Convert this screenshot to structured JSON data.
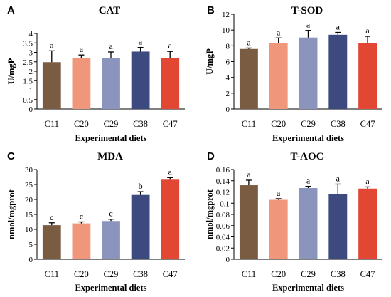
{
  "colors": [
    "#7a5c42",
    "#f0977b",
    "#8b94bc",
    "#3c4a80",
    "#e24734"
  ],
  "chart_data": [
    {
      "type": "bar",
      "panel": "A",
      "title": "CAT",
      "ylabel": "U/mgP",
      "xlabel": "Experimental diets",
      "categories": [
        "C11",
        "C20",
        "C29",
        "C38",
        "C47"
      ],
      "values": [
        2.48,
        2.7,
        2.7,
        3.04,
        2.7
      ],
      "errors": [
        0.6,
        0.16,
        0.32,
        0.22,
        0.35
      ],
      "significance": [
        "a",
        "a",
        "a",
        "a",
        "a"
      ],
      "ylim": [
        0,
        4
      ],
      "yticks": [
        "0",
        "0.5",
        "1",
        "1.5",
        "2",
        "2.5",
        "3",
        "3.5",
        "4"
      ]
    },
    {
      "type": "bar",
      "panel": "B",
      "title": "T-SOD",
      "ylabel": "U/mgP",
      "xlabel": "Experimental diets",
      "categories": [
        "C11",
        "C20",
        "C29",
        "C38",
        "C47"
      ],
      "values": [
        7.6,
        8.35,
        9.05,
        9.4,
        8.3
      ],
      "errors": [
        0.12,
        0.65,
        0.9,
        0.3,
        0.9
      ],
      "significance": [
        "a",
        "a",
        "a",
        "a",
        "a"
      ],
      "ylim": [
        0,
        12
      ],
      "yticks": [
        "0",
        "2",
        "4",
        "6",
        "8",
        "10",
        "12"
      ]
    },
    {
      "type": "bar",
      "panel": "C",
      "title": "MDA",
      "ylabel": "nmol/mgprot",
      "xlabel": "Experimental diets",
      "categories": [
        "C11",
        "C20",
        "C29",
        "C38",
        "C47"
      ],
      "values": [
        11.4,
        12.0,
        12.8,
        21.5,
        26.6
      ],
      "errors": [
        0.8,
        0.5,
        0.6,
        1.1,
        0.7
      ],
      "significance": [
        "c",
        "c",
        "c",
        "b",
        "a"
      ],
      "ylim": [
        0,
        30
      ],
      "yticks": [
        "0",
        "5",
        "10",
        "15",
        "20",
        "25",
        "30"
      ]
    },
    {
      "type": "bar",
      "panel": "D",
      "title": "T-AOC",
      "ylabel": "nmol/mgprot",
      "xlabel": "Experimental diets",
      "categories": [
        "C11",
        "C20",
        "C29",
        "C38",
        "C47"
      ],
      "values": [
        0.132,
        0.106,
        0.127,
        0.116,
        0.126
      ],
      "errors": [
        0.009,
        0.002,
        0.003,
        0.018,
        0.003
      ],
      "significance": [
        "a",
        "a",
        "a",
        "a",
        "a"
      ],
      "ylim": [
        0,
        0.16
      ],
      "yticks": [
        "0",
        "0.02",
        "0.04",
        "0.06",
        "0.08",
        "0.1",
        "0.12",
        "0.14",
        "0.16"
      ]
    }
  ]
}
